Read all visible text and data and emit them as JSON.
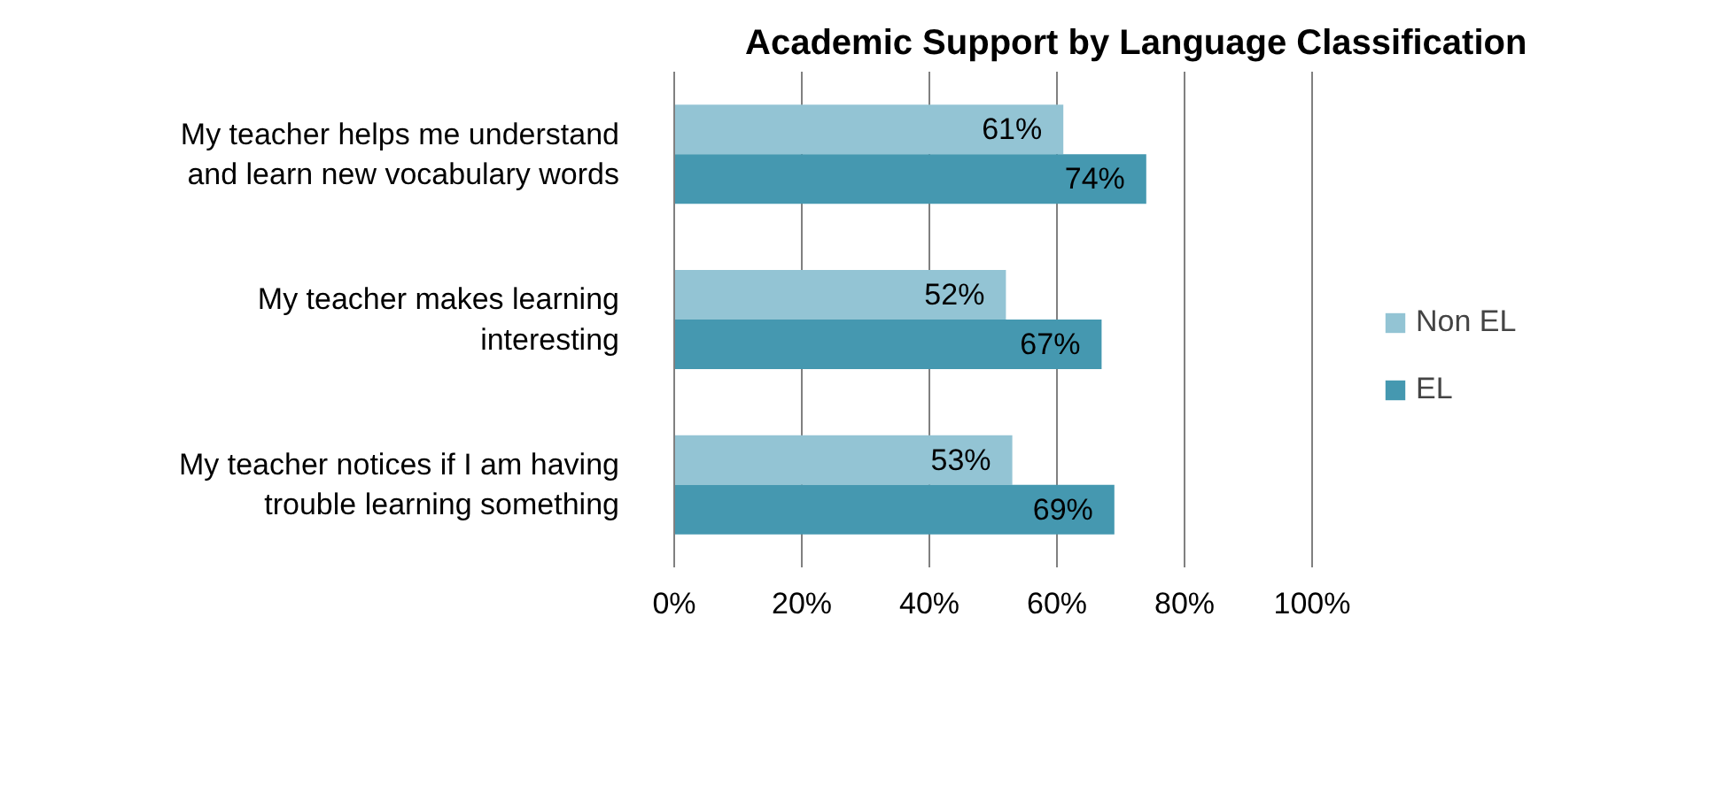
{
  "chart_data": {
    "type": "bar",
    "orientation": "horizontal",
    "title": "Academic Support by Language Classification",
    "categories": [
      "My teacher helps me understand\nand learn new vocabulary words",
      "My teacher makes learning\ninteresting",
      "My teacher notices if I am having\ntrouble learning something"
    ],
    "series": [
      {
        "name": "Non EL",
        "color": "#93c4d4",
        "values": [
          61,
          52,
          53
        ],
        "value_labels": [
          "61%",
          "52%",
          "53%"
        ]
      },
      {
        "name": "EL",
        "color": "#4598b0",
        "values": [
          74,
          67,
          69
        ],
        "value_labels": [
          "74%",
          "67%",
          "69%"
        ]
      }
    ],
    "xlim": [
      0,
      100
    ],
    "xticks": [
      {
        "value": 0,
        "label": "0%"
      },
      {
        "value": 20,
        "label": "20%"
      },
      {
        "value": 40,
        "label": "40%"
      },
      {
        "value": 60,
        "label": "60%"
      },
      {
        "value": 80,
        "label": "80%"
      },
      {
        "value": 100,
        "label": "100%"
      }
    ],
    "grid": "x",
    "legend": "right"
  }
}
